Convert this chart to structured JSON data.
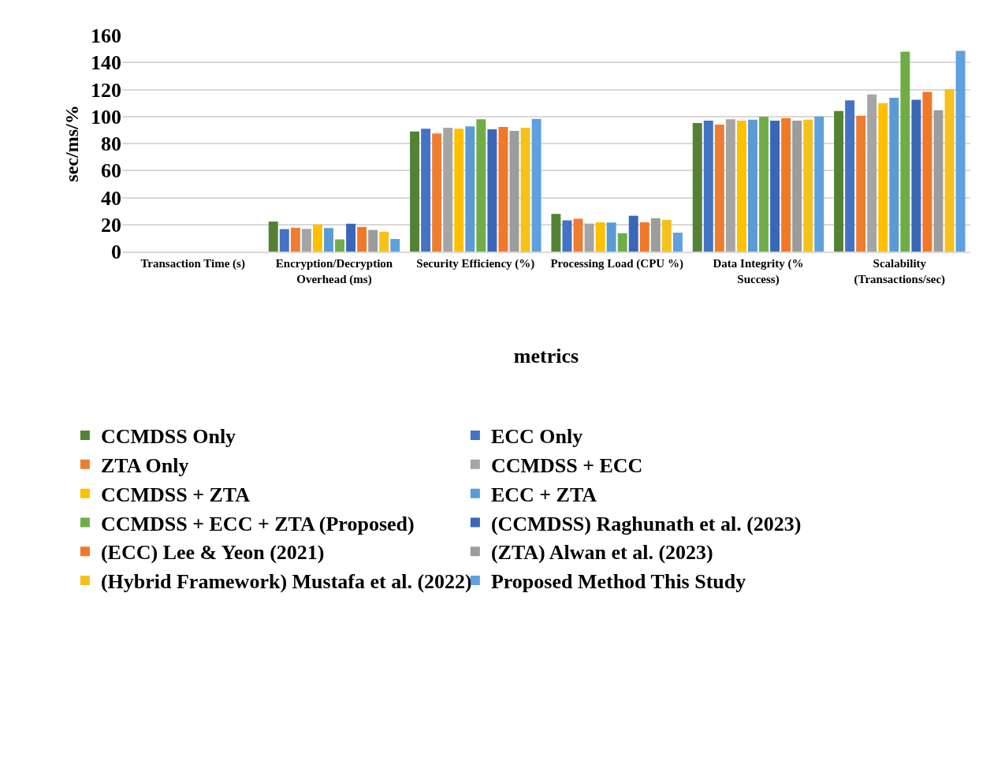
{
  "chart_data": {
    "type": "bar",
    "xlabel": "metrics",
    "ylabel": "sec/ms/%",
    "categories": [
      "Transaction Time (s)",
      "Encryption/Decryption Overhead (ms)",
      "Security Efficiency (%)",
      "Processing Load (CPU %)",
      "Data Integrity (% Success)",
      "Scalability (Transactions/sec)"
    ],
    "series": [
      {
        "name": "CCMDSS Only",
        "color": "#548235",
        "values": [
          0,
          22.2,
          88.9,
          27.9,
          95.2,
          104.1
        ]
      },
      {
        "name": "ECC Only",
        "color": "#4472c4",
        "values": [
          0,
          16.6,
          91,
          23.1,
          97,
          112
        ]
      },
      {
        "name": "ZTA Only",
        "color": "#ed7d31",
        "values": [
          0,
          17.6,
          87.5,
          24.3,
          94,
          100.6
        ]
      },
      {
        "name": "CCMDSS + ECC",
        "color": "#a5a5a5",
        "values": [
          0,
          16.8,
          91.7,
          20.7,
          98,
          116.4
        ]
      },
      {
        "name": "CCMDSS + ZTA",
        "color": "#ffc000",
        "values": [
          0,
          20,
          90.9,
          21.7,
          97,
          109.9
        ]
      },
      {
        "name": "ECC + ZTA",
        "color": "#5b9bd5",
        "values": [
          0,
          17.4,
          92.7,
          21.5,
          97.6,
          113.8
        ]
      },
      {
        "name": "CCMDSS + ECC + ZTA (Proposed)",
        "color": "#70ad47",
        "values": [
          0,
          9,
          98,
          13.6,
          99.8,
          148
        ]
      },
      {
        "name": "(CCMDSS) Raghunath et al. (2023)",
        "color": "#3a66b8",
        "values": [
          0,
          20.6,
          90.5,
          26.5,
          97,
          112.4
        ]
      },
      {
        "name": "(ECC) Lee & Yeon (2021)",
        "color": "#f07828",
        "values": [
          0,
          18.2,
          92.3,
          21.7,
          98.8,
          118.3
        ]
      },
      {
        "name": "(ZTA) Alwan et al. (2023)",
        "color": "#9c9c9c",
        "values": [
          0,
          16,
          89.3,
          24.7,
          97,
          104.7
        ]
      },
      {
        "name": "(Hybrid Framework) Mustafa et al. (2022)",
        "color": "#f5c21c",
        "values": [
          0,
          14.7,
          91.7,
          23.5,
          97.6,
          120.3
        ]
      },
      {
        "name": "Proposed Method This Study",
        "color": "#5fa0de",
        "values": [
          0,
          9.3,
          98.2,
          14,
          100,
          148.6
        ]
      }
    ],
    "ylim": [
      0,
      160
    ],
    "yticks": [
      0,
      20,
      40,
      60,
      80,
      100,
      120,
      140,
      160
    ],
    "grid": "y",
    "legend": "bottom"
  }
}
